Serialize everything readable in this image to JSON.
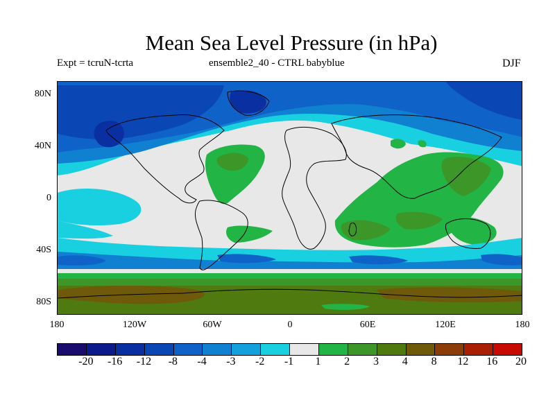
{
  "title": "Mean Sea Level Pressure (in hPa)",
  "subtitle_left": "Expt = tcruN-tcrta",
  "subtitle_center": "ensemble2_40 - CTRL babyblue",
  "subtitle_right": "DJF",
  "y_ticks": [
    "80N",
    "40N",
    "0",
    "40S",
    "80S"
  ],
  "x_ticks": [
    "180",
    "120W",
    "60W",
    "0",
    "60E",
    "120E",
    "180"
  ],
  "colorbar": {
    "labels": [
      "-20",
      "-16",
      "-12",
      "-8",
      "-4",
      "-3",
      "-2",
      "-1",
      "1",
      "2",
      "3",
      "4",
      "8",
      "12",
      "16",
      "20"
    ],
    "colors": [
      "#1a0b6e",
      "#0d1a8c",
      "#0a2fa0",
      "#0a47b4",
      "#0f62c8",
      "#1080d0",
      "#14a0dc",
      "#18d0e0",
      "#e8e8e8",
      "#22b444",
      "#3c9628",
      "#4e7a10",
      "#6e5a0a",
      "#8c3c08",
      "#aa1e06",
      "#c80a04"
    ]
  },
  "fields": {
    "neutral": "#e8e8e8",
    "light_cyan": "#18d0e0",
    "cyan": "#14a0dc",
    "mid_blue": "#1080d0",
    "blue": "#0f62c8",
    "deep_blue": "#0a47b4",
    "navy": "#0a2fa0",
    "green": "#22b444",
    "dark_green": "#3c9628",
    "olive": "#4e7a10",
    "brown": "#6e5a0a"
  }
}
